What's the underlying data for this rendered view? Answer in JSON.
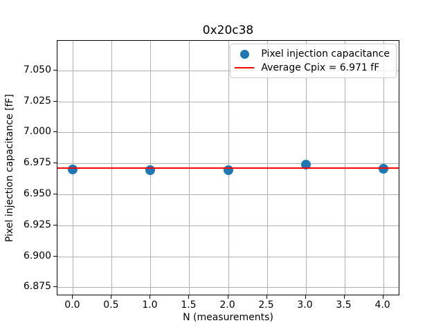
{
  "chart_data": {
    "type": "scatter",
    "title": "0x20c38",
    "xlabel": "N (measurements)",
    "ylabel": "Pixel injection capacitance [fF]",
    "series": [
      {
        "name": "Pixel injection capacitance",
        "x": [
          0,
          1,
          2,
          3,
          4
        ],
        "y": [
          6.9703,
          6.9697,
          6.9697,
          6.9739,
          6.9708
        ]
      }
    ],
    "average_line": {
      "value": 6.971,
      "label": "Average Cpix = 6.971 fF"
    },
    "xlim": [
      -0.2,
      4.2
    ],
    "ylim": [
      6.869,
      7.074
    ],
    "xticks": [
      {
        "value": 0.0,
        "label": "0.0"
      },
      {
        "value": 0.5,
        "label": "0.5"
      },
      {
        "value": 1.0,
        "label": "1.0"
      },
      {
        "value": 1.5,
        "label": "1.5"
      },
      {
        "value": 2.0,
        "label": "2.0"
      },
      {
        "value": 2.5,
        "label": "2.5"
      },
      {
        "value": 3.0,
        "label": "3.0"
      },
      {
        "value": 3.5,
        "label": "3.5"
      },
      {
        "value": 4.0,
        "label": "4.0"
      }
    ],
    "yticks": [
      {
        "value": 6.875,
        "label": "6.875"
      },
      {
        "value": 6.9,
        "label": "6.900"
      },
      {
        "value": 6.925,
        "label": "6.925"
      },
      {
        "value": 6.95,
        "label": "6.950"
      },
      {
        "value": 6.975,
        "label": "6.975"
      },
      {
        "value": 7.0,
        "label": "7.000"
      },
      {
        "value": 7.025,
        "label": "7.025"
      },
      {
        "value": 7.05,
        "label": "7.050"
      }
    ],
    "grid": true,
    "legend": {
      "position": "upper right",
      "entries": [
        {
          "marker": "dot",
          "color": "#1f77b4",
          "label": "Pixel injection capacitance"
        },
        {
          "marker": "line",
          "color": "#ff0000",
          "label": "Average Cpix = 6.971 fF"
        }
      ]
    },
    "colors": {
      "points": "#1f77b4",
      "average_line": "#ff0000",
      "grid": "#b0b0b0",
      "axes": "#000000",
      "legend_border": "#cccccc"
    }
  }
}
